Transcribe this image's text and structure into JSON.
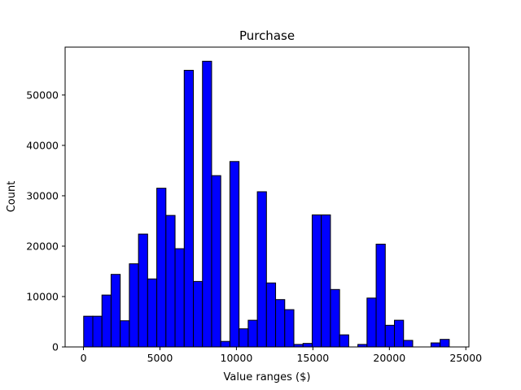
{
  "chart_data": {
    "type": "bar",
    "title": "Purchase",
    "xlabel": "Value ranges ($)",
    "ylabel": "Count",
    "xlim": [
      -1200,
      25200
    ],
    "ylim": [
      0,
      59500
    ],
    "xticks": [
      0,
      5000,
      10000,
      15000,
      20000,
      25000
    ],
    "yticks": [
      0,
      10000,
      20000,
      30000,
      40000,
      50000
    ],
    "bin_width": 597.6,
    "bin_edges_start": 12,
    "bins": [
      {
        "start": 12,
        "end": 609.6,
        "count": 6100
      },
      {
        "start": 609.6,
        "end": 1207.2,
        "count": 6100
      },
      {
        "start": 1207.2,
        "end": 1804.8,
        "count": 10300
      },
      {
        "start": 1804.8,
        "end": 2402.4,
        "count": 14400
      },
      {
        "start": 2402.4,
        "end": 3000,
        "count": 5200
      },
      {
        "start": 3000,
        "end": 3597.6,
        "count": 16500
      },
      {
        "start": 3597.6,
        "end": 4195.2,
        "count": 22400
      },
      {
        "start": 4195.2,
        "end": 4792.8,
        "count": 13500
      },
      {
        "start": 4792.8,
        "end": 5390.4,
        "count": 31500
      },
      {
        "start": 5390.4,
        "end": 5988,
        "count": 26100
      },
      {
        "start": 5988,
        "end": 6585.6,
        "count": 19500
      },
      {
        "start": 6585.6,
        "end": 7183.2,
        "count": 54900
      },
      {
        "start": 7183.2,
        "end": 7780.8,
        "count": 13000
      },
      {
        "start": 7780.8,
        "end": 8378.4,
        "count": 56700
      },
      {
        "start": 8378.4,
        "end": 8976,
        "count": 34000
      },
      {
        "start": 8976,
        "end": 9573.6,
        "count": 1100
      },
      {
        "start": 9573.6,
        "end": 10171.2,
        "count": 36800
      },
      {
        "start": 10171.2,
        "end": 10768.8,
        "count": 3600
      },
      {
        "start": 10768.8,
        "end": 11366.4,
        "count": 5300
      },
      {
        "start": 11366.4,
        "end": 11964,
        "count": 30800
      },
      {
        "start": 11964,
        "end": 12561.6,
        "count": 12700
      },
      {
        "start": 12561.6,
        "end": 13159.2,
        "count": 9400
      },
      {
        "start": 13159.2,
        "end": 13756.8,
        "count": 7400
      },
      {
        "start": 13756.8,
        "end": 14354.4,
        "count": 500
      },
      {
        "start": 14354.4,
        "end": 14952,
        "count": 700
      },
      {
        "start": 14952,
        "end": 15549.6,
        "count": 26200
      },
      {
        "start": 15549.6,
        "end": 16147.2,
        "count": 26200
      },
      {
        "start": 16147.2,
        "end": 16744.8,
        "count": 11400
      },
      {
        "start": 16744.8,
        "end": 17342.4,
        "count": 2400
      },
      {
        "start": 17342.4,
        "end": 17940,
        "count": 0
      },
      {
        "start": 17940,
        "end": 18537.6,
        "count": 500
      },
      {
        "start": 18537.6,
        "end": 19135.2,
        "count": 9700
      },
      {
        "start": 19135.2,
        "end": 19732.8,
        "count": 20400
      },
      {
        "start": 19732.8,
        "end": 20330.4,
        "count": 4300
      },
      {
        "start": 20330.4,
        "end": 20928,
        "count": 5300
      },
      {
        "start": 20928,
        "end": 21525.6,
        "count": 1300
      },
      {
        "start": 21525.6,
        "end": 22123.2,
        "count": 0
      },
      {
        "start": 22123.2,
        "end": 22720.8,
        "count": 0
      },
      {
        "start": 22720.8,
        "end": 23318.4,
        "count": 800
      },
      {
        "start": 23318.4,
        "end": 23916,
        "count": 1500
      }
    ],
    "bar_color": "#0000ff",
    "edge_color": "#000000",
    "grid": false,
    "legend": "none"
  }
}
